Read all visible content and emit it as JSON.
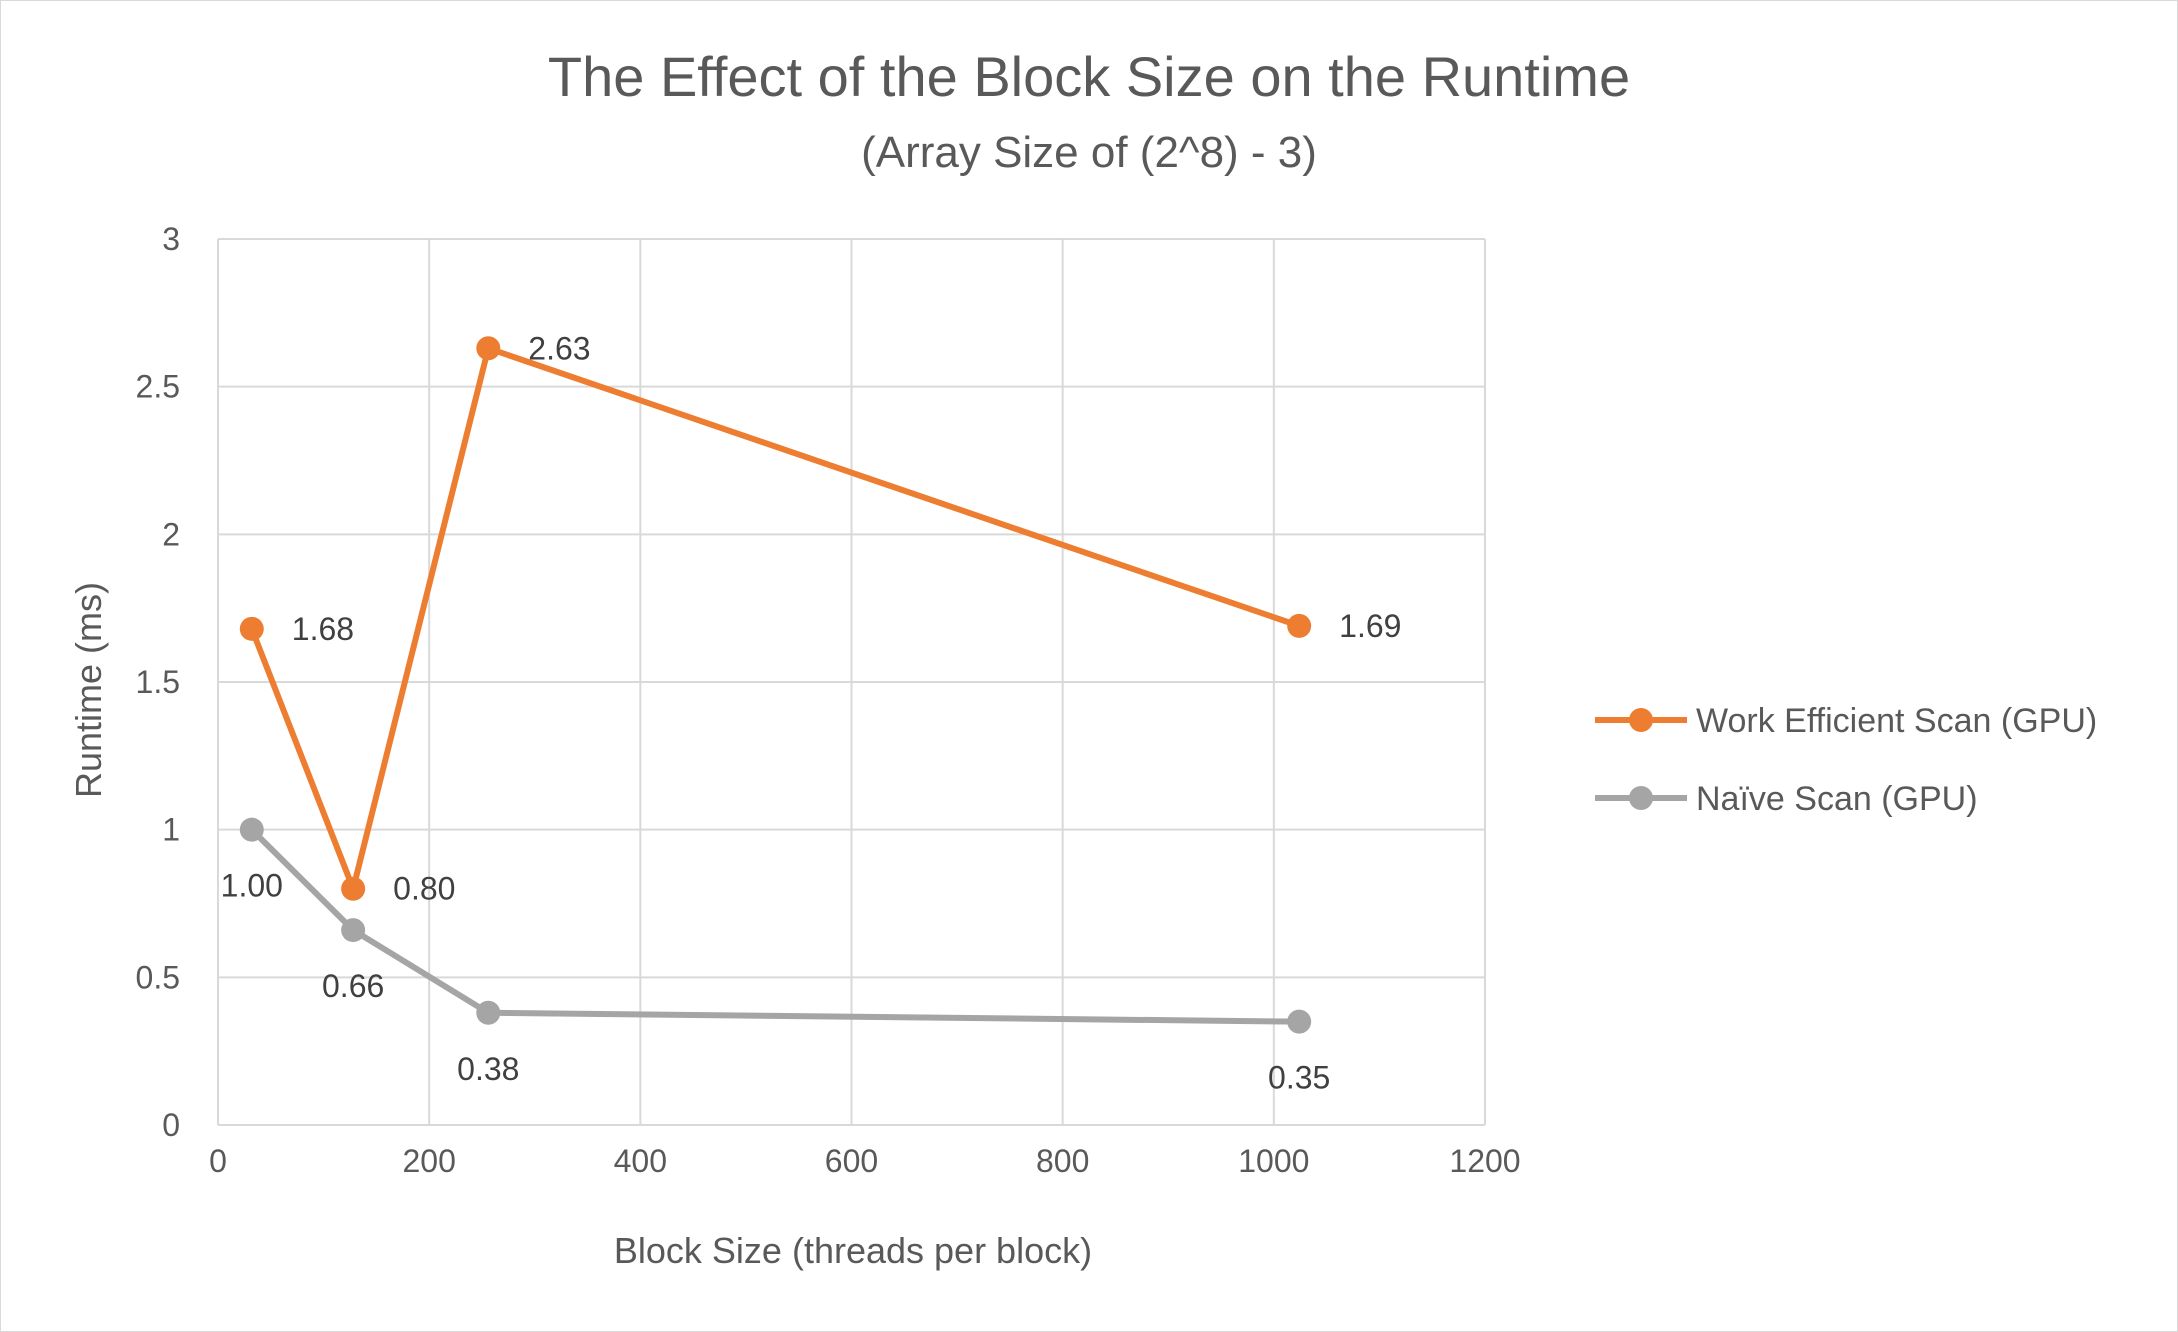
{
  "chart_data": {
    "type": "line",
    "title": "The Effect of the Block Size on the Runtime",
    "subtitle": "(Array Size of (2^8) - 3)",
    "xlabel": "Block Size (threads per block)",
    "ylabel": "Runtime (ms)",
    "xlim": [
      0,
      1200
    ],
    "ylim": [
      0,
      3
    ],
    "xticks": [
      0,
      200,
      400,
      600,
      800,
      1000,
      1200
    ],
    "yticks": [
      0,
      0.5,
      1,
      1.5,
      2,
      2.5,
      3
    ],
    "xtick_labels": [
      "0",
      "200",
      "400",
      "600",
      "800",
      "1000",
      "1200"
    ],
    "ytick_labels": [
      "0",
      "0.5",
      "1",
      "1.5",
      "2",
      "2.5",
      "3"
    ],
    "grid": true,
    "legend_position": "right",
    "series": [
      {
        "name": "Work Efficient Scan (GPU)",
        "color": "#ED7D31",
        "x": [
          32,
          128,
          256,
          1024
        ],
        "y": [
          1.68,
          0.8,
          2.63,
          1.69
        ],
        "labels": [
          "1.68",
          "0.80",
          "2.63",
          "1.69"
        ],
        "label_position": "right"
      },
      {
        "name": "Naïve Scan (GPU)",
        "color": "#A5A5A5",
        "x": [
          32,
          128,
          256,
          1024
        ],
        "y": [
          1.0,
          0.66,
          0.38,
          0.35
        ],
        "labels": [
          "1.00",
          "0.66",
          "0.38",
          "0.35"
        ],
        "label_position": "below"
      }
    ]
  }
}
